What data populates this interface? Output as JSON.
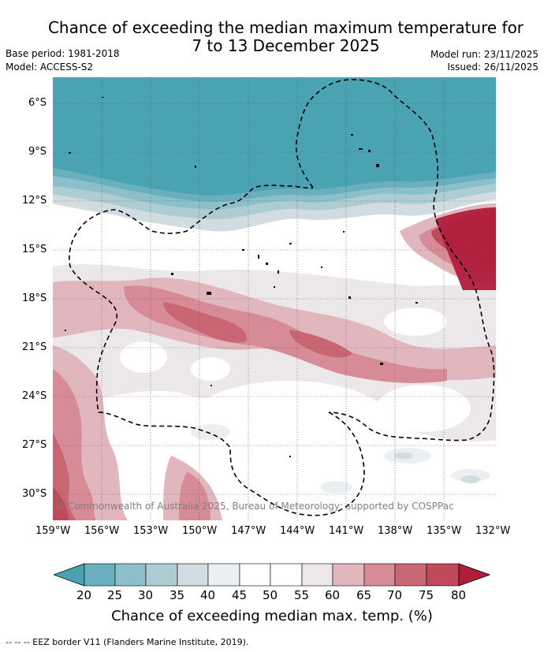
{
  "title": {
    "line1": "Chance of exceeding the median maximum temperature for",
    "line2": "7 to 13 December 2025"
  },
  "meta": {
    "base_period": "Base period: 1981-2018",
    "model": "Model: ACCESS-S2",
    "model_run": "Model run: 23/11/2025",
    "issued": "Issued: 26/11/2025"
  },
  "map": {
    "lat_labels": [
      "6°S",
      "9°S",
      "12°S",
      "15°S",
      "18°S",
      "21°S",
      "24°S",
      "27°S",
      "30°S"
    ],
    "lon_labels": [
      "159°W",
      "156°W",
      "153°W",
      "150°W",
      "147°W",
      "144°W",
      "141°W",
      "138°W",
      "135°W",
      "132°W"
    ],
    "copyright": "© Commonwealth of Australia 2025, Bureau of Meteorology; supported by COSPPac"
  },
  "colorbar": {
    "ticks": [
      "20",
      "25",
      "30",
      "35",
      "40",
      "45",
      "50",
      "55",
      "60",
      "65",
      "70",
      "75",
      "80"
    ],
    "colors": [
      "#4aa3b3",
      "#6aafbd",
      "#8bbfca",
      "#adcdd3",
      "#d0dcdf",
      "#ebeff1",
      "#ffffff",
      "#ffffff",
      "#ece8ea",
      "#e2b6bd",
      "#d68b96",
      "#c86773",
      "#bf4a5b",
      "#b01e3c"
    ],
    "label": "Chance of exceeding median max. temp. (%)"
  },
  "footer": "--  --  -- EEZ border V11 (Flanders Marine Institute, 2019)."
}
